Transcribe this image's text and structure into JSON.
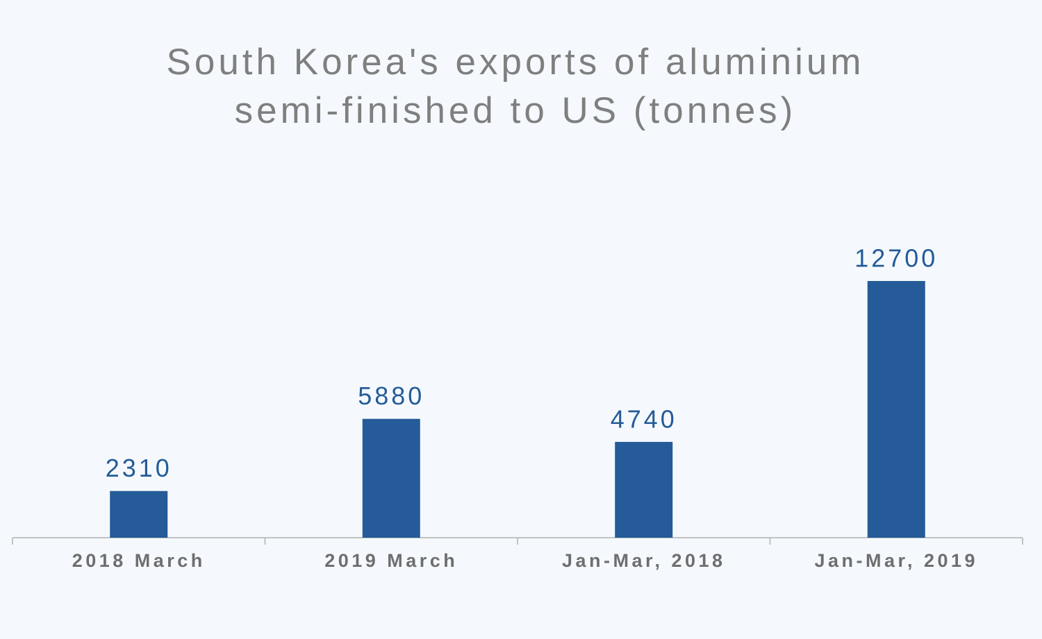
{
  "chart_data": {
    "type": "bar",
    "title": [
      "South Korea's exports of aluminium",
      "semi-finished to US (tonnes)"
    ],
    "categories": [
      "2018 March",
      "2019 March",
      "Jan-Mar, 2018",
      "Jan-Mar, 2019"
    ],
    "values": [
      2310,
      5880,
      4740,
      12700
    ],
    "color": "#245b98"
  }
}
